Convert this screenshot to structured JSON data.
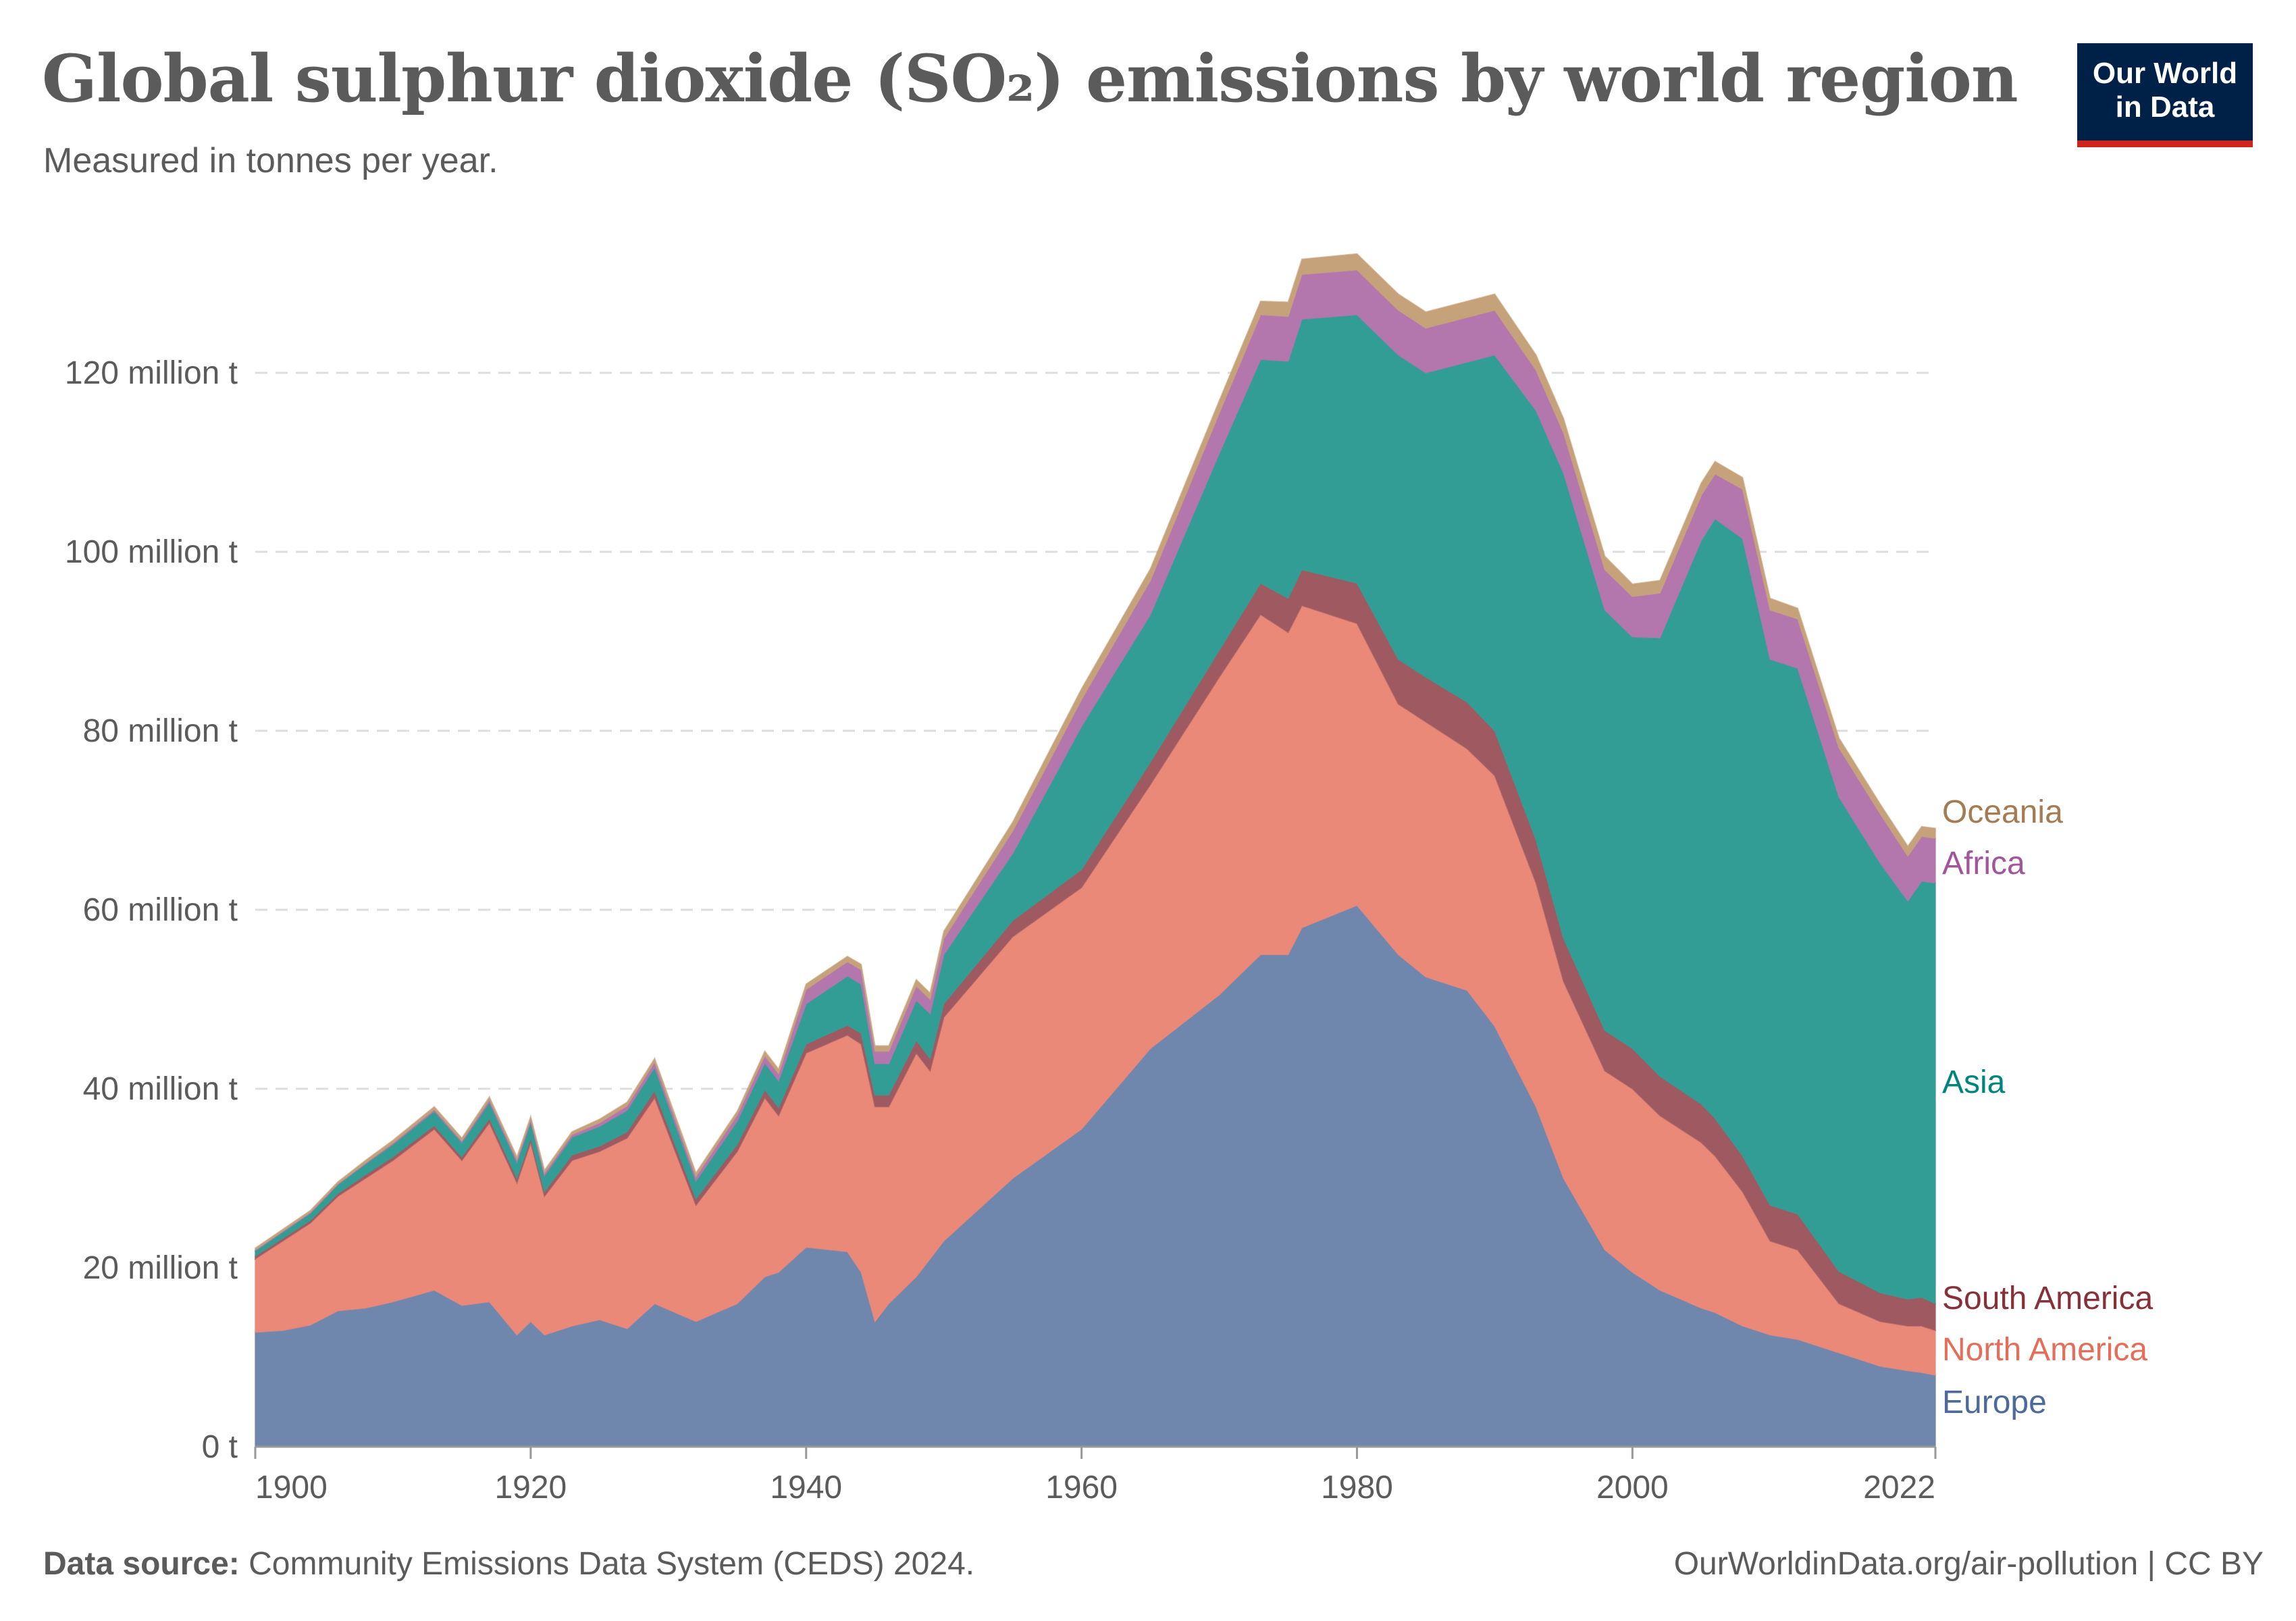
{
  "header": {
    "title": "Global sulphur dioxide (SO₂) emissions by world region",
    "subtitle": "Measured in tonnes per year."
  },
  "logo": {
    "line1": "Our World",
    "line2": "in Data",
    "bg_color": "#002147",
    "accent_color": "#ce261e"
  },
  "footer": {
    "source_label": "Data source:",
    "source_text": "Community Emissions Data System (CEDS) 2024.",
    "url": "OurWorldinData.org/air-pollution",
    "license": "CC BY"
  },
  "chart_data": {
    "type": "area",
    "stacked": true,
    "title": "Global sulphur dioxide (SO₂) emissions by world region",
    "subtitle": "Measured in tonnes per year.",
    "xlabel": "",
    "ylabel": "",
    "unit": "million tonnes",
    "xlim": [
      1900,
      2022
    ],
    "ylim": [
      0,
      135
    ],
    "grid": "horizontal dashed",
    "legend_position": "right (inline labels at series ends)",
    "y_ticks": [
      {
        "value": 0,
        "label": "0 t"
      },
      {
        "value": 20,
        "label": "20 million t"
      },
      {
        "value": 40,
        "label": "40 million t"
      },
      {
        "value": 60,
        "label": "60 million t"
      },
      {
        "value": 80,
        "label": "80 million t"
      },
      {
        "value": 100,
        "label": "100 million t"
      },
      {
        "value": 120,
        "label": "120 million t"
      }
    ],
    "x_ticks": [
      {
        "value": 1900,
        "label": "1900"
      },
      {
        "value": 1920,
        "label": "1920"
      },
      {
        "value": 1940,
        "label": "1940"
      },
      {
        "value": 1960,
        "label": "1960"
      },
      {
        "value": 1980,
        "label": "1980"
      },
      {
        "value": 2000,
        "label": "2000"
      },
      {
        "value": 2022,
        "label": "2022"
      }
    ],
    "x": [
      1900,
      1902,
      1904,
      1906,
      1908,
      1910,
      1913,
      1915,
      1917,
      1919,
      1920,
      1921,
      1923,
      1925,
      1927,
      1929,
      1932,
      1935,
      1937,
      1938,
      1940,
      1943,
      1944,
      1945,
      1946,
      1948,
      1949,
      1950,
      1955,
      1960,
      1965,
      1970,
      1973,
      1975,
      1976,
      1980,
      1983,
      1985,
      1988,
      1990,
      1993,
      1995,
      1998,
      2000,
      2002,
      2005,
      2006,
      2008,
      2010,
      2012,
      2015,
      2018,
      2020,
      2021,
      2022
    ],
    "series": [
      {
        "name": "Europe",
        "color": "#6f86ad",
        "values": [
          12.8,
          13.0,
          13.6,
          15.2,
          15.5,
          16.2,
          17.5,
          15.8,
          16.2,
          12.5,
          14.0,
          12.5,
          13.5,
          14.2,
          13.2,
          16.0,
          14.0,
          16.0,
          19.0,
          19.5,
          22.3,
          21.8,
          19.5,
          14.0,
          16.0,
          19.0,
          21.0,
          23.0,
          30.0,
          35.5,
          44.5,
          50.5,
          55.0,
          55.0,
          58.0,
          60.5,
          55.0,
          52.5,
          51.0,
          47.0,
          38.0,
          30.0,
          22.0,
          19.5,
          17.5,
          15.5,
          15.0,
          13.5,
          12.5,
          12.0,
          10.5,
          9.0,
          8.5,
          8.3,
          8.0
        ]
      },
      {
        "name": "North America",
        "color": "#eb8979",
        "values": [
          8.2,
          10.0,
          11.4,
          12.8,
          14.5,
          15.8,
          18.0,
          16.2,
          20.0,
          17.0,
          20.0,
          15.5,
          18.5,
          18.8,
          21.3,
          23.0,
          13.0,
          17.0,
          20.0,
          17.5,
          21.7,
          24.2,
          25.5,
          24.0,
          22.0,
          25.0,
          21.0,
          25.0,
          27.0,
          27.0,
          29.5,
          35.5,
          38.0,
          36.0,
          36.0,
          31.5,
          28.0,
          28.5,
          27.0,
          28.0,
          25.0,
          22.0,
          20.0,
          20.5,
          19.5,
          18.5,
          17.5,
          15.0,
          10.5,
          10.0,
          5.5,
          5.0,
          5.0,
          5.2,
          5.0
        ]
      },
      {
        "name": "South America",
        "color": "#9e5a60",
        "values": [
          0.3,
          0.3,
          0.3,
          0.3,
          0.4,
          0.4,
          0.4,
          0.4,
          0.5,
          0.5,
          0.5,
          0.5,
          0.6,
          0.6,
          0.7,
          0.8,
          0.7,
          0.8,
          0.9,
          0.9,
          1.0,
          1.1,
          1.2,
          1.3,
          1.3,
          1.4,
          1.4,
          1.5,
          1.8,
          2.0,
          2.5,
          3.0,
          3.5,
          3.8,
          4.0,
          4.5,
          5.0,
          5.0,
          5.2,
          5.0,
          4.8,
          4.8,
          4.5,
          4.5,
          4.4,
          4.3,
          4.2,
          4.0,
          4.0,
          4.0,
          3.6,
          3.2,
          3.0,
          3.2,
          3.0
        ]
      },
      {
        "name": "Asia",
        "color": "#329d95",
        "values": [
          0.6,
          0.7,
          0.8,
          1.0,
          1.2,
          1.4,
          1.6,
          1.6,
          1.8,
          1.8,
          1.8,
          1.8,
          2.0,
          2.2,
          2.4,
          2.6,
          2.0,
          2.6,
          3.0,
          3.0,
          4.5,
          5.5,
          5.5,
          3.5,
          3.5,
          4.5,
          5.0,
          5.5,
          7.5,
          16.0,
          16.5,
          22.0,
          25.0,
          26.5,
          28.0,
          30.0,
          34.0,
          34.0,
          38.0,
          42.0,
          48.0,
          52.0,
          47.0,
          46.0,
          49.0,
          63.0,
          67.0,
          69.0,
          61.0,
          61.0,
          53.0,
          48.0,
          44.5,
          46.5,
          47.0
        ]
      },
      {
        "name": "Africa",
        "color": "#b376ad",
        "values": [
          0.1,
          0.1,
          0.1,
          0.1,
          0.1,
          0.15,
          0.2,
          0.2,
          0.3,
          0.3,
          0.3,
          0.3,
          0.3,
          0.4,
          0.5,
          0.6,
          0.5,
          0.7,
          0.8,
          0.8,
          1.6,
          1.6,
          1.6,
          1.4,
          1.4,
          1.6,
          1.6,
          1.8,
          2.5,
          3.0,
          3.8,
          4.5,
          5.0,
          5.0,
          5.0,
          5.0,
          5.0,
          5.0,
          5.0,
          5.0,
          4.5,
          4.5,
          4.5,
          4.5,
          5.0,
          5.0,
          5.0,
          5.5,
          5.5,
          5.5,
          5.5,
          5.5,
          5.0,
          5.0,
          5.0
        ]
      },
      {
        "name": "Oceania",
        "color": "#c6a27b",
        "values": [
          0.2,
          0.2,
          0.2,
          0.2,
          0.3,
          0.3,
          0.3,
          0.3,
          0.3,
          0.3,
          0.3,
          0.3,
          0.3,
          0.4,
          0.4,
          0.4,
          0.4,
          0.4,
          0.5,
          0.5,
          0.6,
          0.6,
          0.6,
          0.6,
          0.6,
          0.7,
          0.7,
          0.8,
          1.0,
          1.2,
          1.3,
          1.4,
          1.5,
          1.6,
          1.7,
          1.8,
          1.8,
          1.8,
          1.8,
          1.8,
          1.7,
          1.6,
          1.5,
          1.4,
          1.4,
          1.4,
          1.4,
          1.3,
          1.3,
          1.2,
          1.1,
          1.1,
          1.1,
          1.1,
          1.1
        ]
      }
    ],
    "legend": [
      {
        "name": "Oceania",
        "color": "#a57b52"
      },
      {
        "name": "Africa",
        "color": "#a2559c"
      },
      {
        "name": "Asia",
        "color": "#00847e"
      },
      {
        "name": "South America",
        "color": "#883039"
      },
      {
        "name": "North America",
        "color": "#e56e5a"
      },
      {
        "name": "Europe",
        "color": "#4c6a9c"
      }
    ]
  }
}
